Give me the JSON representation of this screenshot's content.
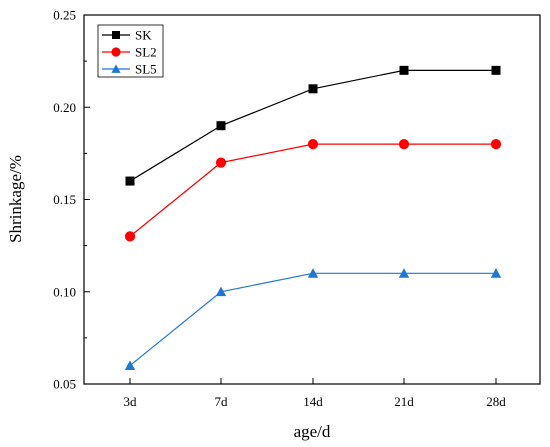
{
  "chart_data": {
    "type": "line",
    "title": "",
    "xlabel": "age/d",
    "ylabel": "Shrinkage/%",
    "categories": [
      "3d",
      "7d",
      "14d",
      "21d",
      "28d"
    ],
    "ylim": [
      0.05,
      0.25
    ],
    "yticks": [
      "0.05",
      "0.10",
      "0.15",
      "0.20",
      "0.25"
    ],
    "grid": false,
    "legend_position": "top-left",
    "series": [
      {
        "name": "SK",
        "values": [
          0.16,
          0.19,
          0.21,
          0.22,
          0.22
        ],
        "color": "#000000",
        "marker": "square"
      },
      {
        "name": "SL2",
        "values": [
          0.13,
          0.17,
          0.18,
          0.18,
          0.18
        ],
        "color": "#ff0000",
        "marker": "circle"
      },
      {
        "name": "SL5",
        "values": [
          0.06,
          0.1,
          0.11,
          0.11,
          0.11
        ],
        "color": "#1f77d4",
        "marker": "triangle"
      }
    ]
  }
}
